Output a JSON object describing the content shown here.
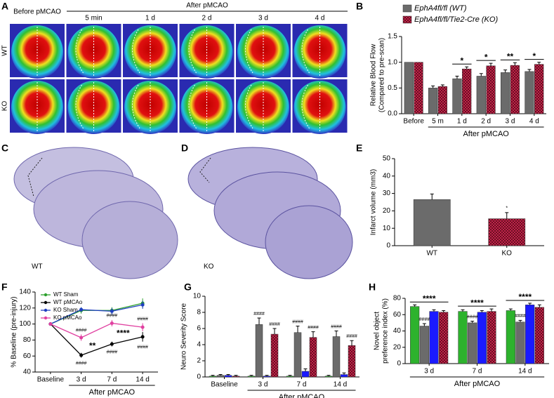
{
  "panels": {
    "letters": [
      "A",
      "B",
      "C",
      "D",
      "E",
      "F",
      "G",
      "H"
    ]
  },
  "panel_a": {
    "header": "After pMCAO",
    "columns": [
      "Before pMCAO",
      "5 min",
      "1 d",
      "2 d",
      "3 d",
      "4 d"
    ],
    "rows": [
      "WT",
      "KO"
    ]
  },
  "panel_c": {
    "label": "WT"
  },
  "panel_d": {
    "label": "KO"
  },
  "chart_data": [
    {
      "type": "bar",
      "ylabel": [
        "Relative Blood Flow",
        "(Compared to pre-scan)"
      ],
      "categories": [
        "Before",
        "5 m",
        "1 d",
        "2 d",
        "3 d",
        "4 d"
      ],
      "xlabel": "After pMCAO",
      "xlabel_span": [
        1,
        5
      ],
      "ylim": [
        0,
        1.5
      ],
      "yticks": [
        {
          "value": 0,
          "label": "0.0"
        },
        {
          "value": 0.5,
          "label": "0.5"
        },
        {
          "value": 1,
          "label": "1.0"
        },
        {
          "value": 1.5,
          "label": "1.5"
        }
      ],
      "legend": "top",
      "series": [
        {
          "name": "EphA4fl/fl (WT)",
          "color": "#6b6b6b",
          "values": [
            1,
            0.5,
            0.68,
            0.73,
            0.8,
            0.82
          ],
          "errors": [
            0,
            0.04,
            0.05,
            0.05,
            0.05,
            0.04
          ]
        },
        {
          "name": "EphA4fl/fl/Tie2-Cre (KO)",
          "color": "#a51d3c",
          "pattern": "checker",
          "values": [
            1,
            0.53,
            0.87,
            0.93,
            0.94,
            0.96
          ],
          "errors": [
            0,
            0.03,
            0.04,
            0.05,
            0.05,
            0.04
          ]
        }
      ],
      "annotations": [
        {
          "text": "*",
          "category": 2
        },
        {
          "text": "*",
          "category": 3
        },
        {
          "text": "**",
          "category": 4
        },
        {
          "text": "*",
          "category": 5
        }
      ]
    },
    {
      "type": "bar",
      "ylabel": "Infarct volume (mm3)",
      "categories": [
        "WT",
        "KO"
      ],
      "ylim": [
        0,
        50
      ],
      "yticks": [
        0,
        10,
        20,
        30,
        40,
        50
      ],
      "series": [
        {
          "values": [
            26.5,
            15.5
          ],
          "errors": [
            3.2,
            3.5
          ],
          "colors": [
            "#6b6b6b",
            "#a51d3c"
          ],
          "patterns": [
            "solid",
            "checker"
          ]
        }
      ],
      "annotations": [
        {
          "text": "*",
          "category": 1,
          "series": 0
        }
      ]
    },
    {
      "type": "line",
      "ylabel": "% Baseline (pre-injury)",
      "categories": [
        "Baseline",
        "3 d",
        "7 d",
        "14 d"
      ],
      "xlabel": "After pMCAO",
      "xlabel_span": [
        1,
        3
      ],
      "ylim": [
        40,
        140
      ],
      "yticks": [
        40,
        60,
        80,
        100,
        120,
        140
      ],
      "legend": "upper left",
      "series": [
        {
          "name": "WT Sham",
          "color": "#2ca02c",
          "values": [
            100,
            117,
            117,
            126
          ],
          "errors": [
            0,
            4,
            4,
            6
          ]
        },
        {
          "name": "WT pMCAo",
          "color": "#000000",
          "values": [
            100,
            61,
            75,
            84
          ],
          "errors": [
            0,
            3,
            3,
            6
          ]
        },
        {
          "name": "KO Sham",
          "color": "#1f3fbf",
          "values": [
            100,
            118,
            116,
            124
          ],
          "errors": [
            0,
            3,
            4,
            5
          ]
        },
        {
          "name": "KO pMCAo",
          "color": "#e040a0",
          "values": [
            100,
            83,
            101,
            96
          ],
          "errors": [
            0,
            4,
            4,
            5
          ]
        }
      ],
      "annotations": [
        {
          "text": "####",
          "category": 1,
          "series": 1,
          "position": "below"
        },
        {
          "text": "####",
          "category": 2,
          "series": 1,
          "position": "below"
        },
        {
          "text": "####",
          "category": 3,
          "series": 1,
          "position": "below"
        },
        {
          "text": "####",
          "category": 1,
          "series": 3
        },
        {
          "text": "####",
          "category": 2,
          "series": 3
        },
        {
          "text": "####",
          "category": 3,
          "series": 3
        },
        {
          "text": "**",
          "category": 1,
          "series": [
            1,
            3
          ]
        },
        {
          "text": "****",
          "category": 2,
          "series": [
            1,
            3
          ]
        }
      ]
    },
    {
      "type": "bar",
      "ylabel": "Neuro Severity Score",
      "categories": [
        "Baseline",
        "3 d",
        "7 d",
        "14 d"
      ],
      "xlabel": "After pMCAO",
      "xlabel_span": [
        1,
        3
      ],
      "ylim": [
        0,
        10
      ],
      "yticks": [
        0,
        2,
        4,
        6,
        8,
        10
      ],
      "series": [
        {
          "color": "#2db22d",
          "values": [
            0.1,
            0.1,
            0.1,
            0.1
          ],
          "errors": [
            0.1,
            0.1,
            0.1,
            0.1
          ]
        },
        {
          "color": "#6b6b6b",
          "values": [
            0.2,
            6.5,
            5.5,
            5.0
          ],
          "errors": [
            0.1,
            0.8,
            0.8,
            0.7
          ]
        },
        {
          "color": "#1a1aff",
          "values": [
            0.2,
            0.1,
            0.7,
            0.3
          ],
          "errors": [
            0.1,
            0.1,
            0.3,
            0.2
          ]
        },
        {
          "color": "#a51d3c",
          "pattern": "checker",
          "values": [
            0.1,
            5.3,
            4.9,
            3.9
          ],
          "errors": [
            0.1,
            0.7,
            0.7,
            0.6
          ]
        }
      ],
      "annotations": [
        {
          "text": "####",
          "category": 1,
          "series": 1
        },
        {
          "text": "####",
          "category": 2,
          "series": 1
        },
        {
          "text": "####",
          "category": 3,
          "series": 1
        },
        {
          "text": "####",
          "category": 1,
          "series": 3
        },
        {
          "text": "####",
          "category": 2,
          "series": 3
        },
        {
          "text": "####",
          "category": 3,
          "series": 3
        }
      ]
    },
    {
      "type": "bar",
      "ylabel": [
        "Novel object",
        "preference index (%)"
      ],
      "categories": [
        "3 d",
        "7 d",
        "14 d"
      ],
      "xlabel": "After pMCAO",
      "ylim": [
        0,
        80
      ],
      "yticks": [
        0,
        20,
        40,
        60,
        80
      ],
      "series": [
        {
          "color": "#2db22d",
          "values": [
            70,
            64,
            65
          ],
          "errors": [
            2,
            2,
            2
          ]
        },
        {
          "color": "#6b6b6b",
          "values": [
            46,
            50,
            51
          ],
          "errors": [
            3,
            2,
            2
          ]
        },
        {
          "color": "#1a1aff",
          "values": [
            64,
            63,
            72
          ],
          "errors": [
            2,
            2,
            2
          ]
        },
        {
          "color": "#a51d3c",
          "pattern": "checker",
          "values": [
            63,
            64,
            69
          ],
          "errors": [
            2,
            3,
            3
          ]
        }
      ],
      "annotations": [
        {
          "text": "****",
          "category": 0
        },
        {
          "text": "****",
          "category": 1
        },
        {
          "text": "****",
          "category": 2
        },
        {
          "text": "####",
          "category": 0,
          "series": 1
        },
        {
          "text": "####",
          "category": 1,
          "series": 1
        },
        {
          "text": "####",
          "category": 2,
          "series": 1
        }
      ]
    }
  ]
}
